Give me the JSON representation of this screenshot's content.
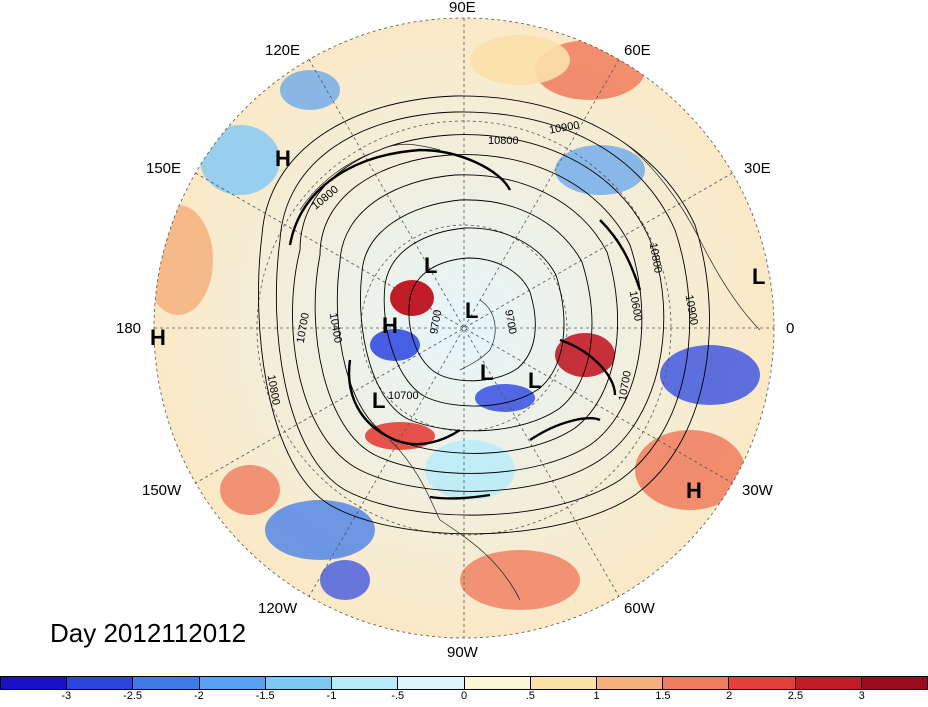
{
  "title": "Day 2012112012",
  "longitude_labels": {
    "n": "90E",
    "ne": "60E",
    "ene": "30E",
    "e": "0",
    "ese": "30W",
    "se": "60W",
    "s": "90W",
    "sw": "120W",
    "wsw": "150W",
    "w": "180",
    "wnw": "150E",
    "nw": "120E"
  },
  "pressure_centers": [
    {
      "id": "h-120e",
      "text": "H"
    },
    {
      "id": "l-north",
      "text": "L"
    },
    {
      "id": "h-center",
      "text": "H"
    },
    {
      "id": "l-pole",
      "text": "L"
    },
    {
      "id": "l-hudson",
      "text": "L"
    },
    {
      "id": "l-atlantic",
      "text": "L"
    },
    {
      "id": "l-pacific",
      "text": "L"
    },
    {
      "id": "h-atlantic",
      "text": "H"
    },
    {
      "id": "l-europe",
      "text": "L"
    },
    {
      "id": "h-west-edge",
      "text": "H"
    }
  ],
  "contour_labels": [
    "10900",
    "10800",
    "10800",
    "10700",
    "10400",
    "9700",
    "9700",
    "10800",
    "10600",
    "10700",
    "10900",
    "10700",
    "10800"
  ],
  "colorbar": {
    "ticks": [
      "-3",
      "-2.5",
      "-2",
      "-1.5",
      "-1",
      "-.5",
      "0",
      ".5",
      "1",
      "1.5",
      "2",
      "2.5",
      "3"
    ],
    "colors": [
      "#1a10c8",
      "#2a44e0",
      "#3f7ae8",
      "#5aa0f0",
      "#7ec8f5",
      "#b4ecfa",
      "#dcf6fb",
      "#fdf6d4",
      "#fbe0a8",
      "#f6b07c",
      "#f07c5e",
      "#e4403a",
      "#c21a26",
      "#9a0c1c"
    ]
  }
}
